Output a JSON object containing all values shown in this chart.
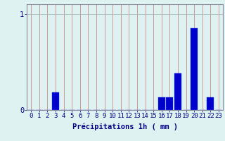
{
  "hours": [
    0,
    1,
    2,
    3,
    4,
    5,
    6,
    7,
    8,
    9,
    10,
    11,
    12,
    13,
    14,
    15,
    16,
    17,
    18,
    19,
    20,
    21,
    22,
    23
  ],
  "values": [
    0,
    0,
    0,
    0.18,
    0,
    0,
    0,
    0,
    0,
    0,
    0,
    0,
    0,
    0,
    0,
    0,
    0.13,
    0.13,
    0.38,
    0,
    0.85,
    0,
    0.13,
    0
  ],
  "bar_color": "#0000cc",
  "bar_edge_color": "#2244ee",
  "background_color": "#dff2f2",
  "grid_color_x": "#cc8888",
  "grid_color_y": "#aabbbb",
  "spine_color": "#888899",
  "text_color": "#000088",
  "xlabel": "Précipitations 1h ( mm )",
  "ylim": [
    0,
    1.1
  ],
  "yticks": [
    0,
    1
  ],
  "ytick_labels": [
    "0",
    "1"
  ],
  "label_fontsize": 7.5,
  "tick_fontsize": 6.5
}
